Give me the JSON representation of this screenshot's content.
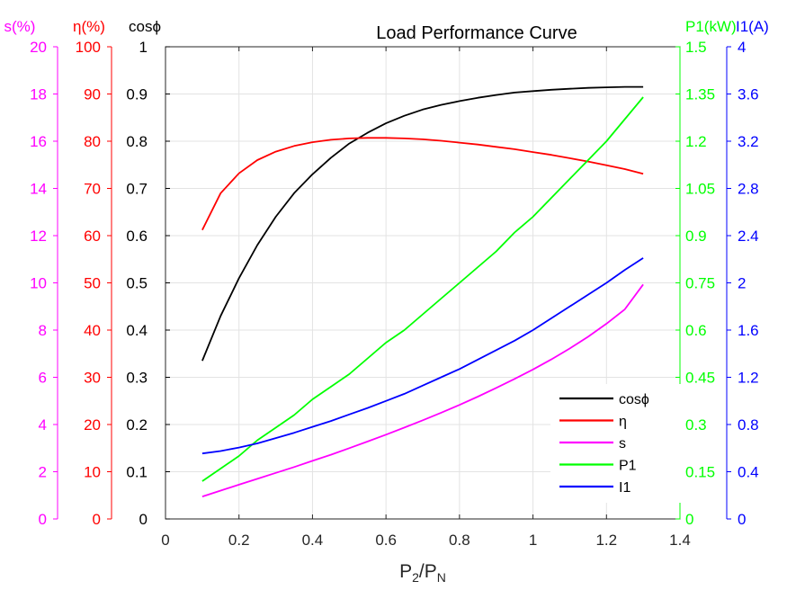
{
  "chart_data": {
    "type": "line",
    "title": "Load Performance Curve",
    "xlabel": "P₂/Pₙ",
    "xlabel_parts": {
      "main1": "P",
      "sub1": "2",
      "slash": "/P",
      "sub2": "N"
    },
    "xlim": [
      0,
      1.4
    ],
    "xticks": [
      "0",
      "0.2",
      "0.4",
      "0.6",
      "0.8",
      "1",
      "1.2",
      "1.4"
    ],
    "grid": true,
    "legend_position": "bottom-right",
    "axes": {
      "s": {
        "label": "s(%)",
        "color": "#ff00ff",
        "side": "left",
        "ylim": [
          0,
          20
        ],
        "ticks": [
          "0",
          "2",
          "4",
          "6",
          "8",
          "10",
          "12",
          "14",
          "16",
          "18",
          "20"
        ]
      },
      "eta": {
        "label": "η(%)",
        "color": "#ff0000",
        "side": "left",
        "ylim": [
          0,
          100
        ],
        "ticks": [
          "0",
          "10",
          "20",
          "30",
          "40",
          "50",
          "60",
          "70",
          "80",
          "90",
          "100"
        ]
      },
      "cos": {
        "label": "cosϕ",
        "color": "#000000",
        "side": "left",
        "ylim": [
          0,
          1
        ],
        "ticks": [
          "0",
          "0.1",
          "0.2",
          "0.3",
          "0.4",
          "0.5",
          "0.6",
          "0.7",
          "0.8",
          "0.9",
          "1"
        ]
      },
      "p1": {
        "label": "P1(kW)",
        "color": "#00ff00",
        "side": "right",
        "ylim": [
          0,
          1.5
        ],
        "ticks": [
          "0",
          "0.15",
          "0.3",
          "0.45",
          "0.6",
          "0.75",
          "0.9",
          "1.05",
          "1.2",
          "1.35",
          "1.5"
        ]
      },
      "i1": {
        "label": "I1(A)",
        "color": "#0000ff",
        "side": "right",
        "ylim": [
          0,
          4
        ],
        "ticks": [
          "0",
          "0.4",
          "0.8",
          "1.2",
          "1.6",
          "2",
          "2.4",
          "2.8",
          "3.2",
          "3.6",
          "4"
        ]
      }
    },
    "x": [
      0.1,
      0.15,
      0.2,
      0.25,
      0.3,
      0.35,
      0.4,
      0.45,
      0.5,
      0.55,
      0.6,
      0.65,
      0.7,
      0.75,
      0.8,
      0.85,
      0.9,
      0.95,
      1.0,
      1.05,
      1.1,
      1.15,
      1.2,
      1.25,
      1.3
    ],
    "series": [
      {
        "name": "cosϕ",
        "axis": "cos",
        "color": "#000000",
        "values": [
          0.335,
          0.43,
          0.51,
          0.58,
          0.64,
          0.69,
          0.73,
          0.765,
          0.795,
          0.818,
          0.838,
          0.854,
          0.867,
          0.877,
          0.885,
          0.892,
          0.898,
          0.903,
          0.906,
          0.909,
          0.911,
          0.913,
          0.914,
          0.915,
          0.915
        ]
      },
      {
        "name": "η",
        "axis": "eta",
        "color": "#ff0000",
        "values": [
          61.2,
          69.0,
          73.2,
          76.0,
          77.8,
          79.0,
          79.8,
          80.3,
          80.6,
          80.7,
          80.7,
          80.6,
          80.4,
          80.1,
          79.7,
          79.3,
          78.8,
          78.3,
          77.7,
          77.1,
          76.4,
          75.7,
          74.9,
          74.1,
          73.1
        ]
      },
      {
        "name": "s",
        "axis": "s",
        "color": "#ff00ff",
        "values": [
          0.95,
          1.2,
          1.45,
          1.7,
          1.95,
          2.2,
          2.46,
          2.72,
          3.0,
          3.28,
          3.57,
          3.87,
          4.18,
          4.5,
          4.83,
          5.18,
          5.55,
          5.93,
          6.33,
          6.76,
          7.22,
          7.72,
          8.27,
          8.88,
          9.93
        ]
      },
      {
        "name": "P1",
        "axis": "p1",
        "color": "#00ff00",
        "values": [
          0.12,
          0.16,
          0.2,
          0.25,
          0.29,
          0.33,
          0.38,
          0.42,
          0.46,
          0.51,
          0.56,
          0.6,
          0.65,
          0.7,
          0.75,
          0.8,
          0.85,
          0.91,
          0.96,
          1.02,
          1.08,
          1.14,
          1.2,
          1.27,
          1.34
        ]
      },
      {
        "name": "I1",
        "axis": "i1",
        "color": "#0000ff",
        "values": [
          0.555,
          0.575,
          0.605,
          0.64,
          0.685,
          0.73,
          0.78,
          0.83,
          0.885,
          0.94,
          1.0,
          1.06,
          1.13,
          1.2,
          1.27,
          1.35,
          1.43,
          1.51,
          1.6,
          1.7,
          1.8,
          1.9,
          2.0,
          2.11,
          2.21
        ]
      }
    ]
  }
}
